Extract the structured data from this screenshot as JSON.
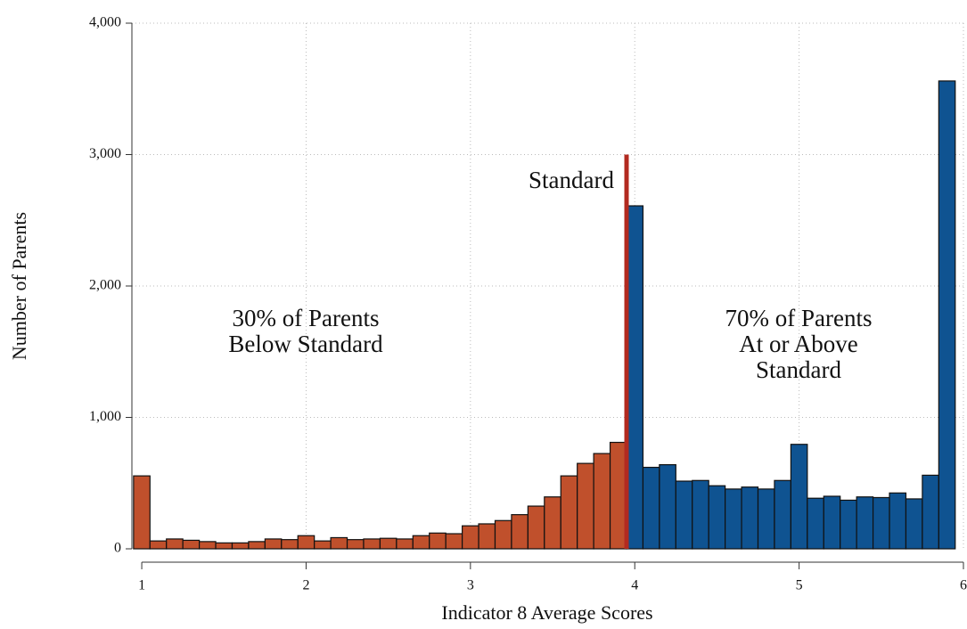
{
  "chart_data": {
    "type": "histogram",
    "x_label": "Indicator 8 Average Scores",
    "y_label": "Number of Parents",
    "bins": [
      0.95,
      1.05,
      1.15,
      1.25,
      1.35,
      1.45,
      1.55,
      1.65,
      1.75,
      1.85,
      1.95,
      2.05,
      2.15,
      2.25,
      2.35,
      2.45,
      2.55,
      2.65,
      2.75,
      2.85,
      2.95,
      3.05,
      3.15,
      3.25,
      3.35,
      3.45,
      3.55,
      3.65,
      3.75,
      3.85,
      3.95,
      4.05,
      4.15,
      4.25,
      4.35,
      4.45,
      4.55,
      4.65,
      4.75,
      4.85,
      4.95,
      5.05,
      5.15,
      5.25,
      5.35,
      5.45,
      5.55,
      5.65,
      5.75,
      5.85,
      5.95
    ],
    "values": [
      555,
      60,
      75,
      65,
      55,
      45,
      45,
      55,
      75,
      70,
      100,
      60,
      85,
      70,
      75,
      80,
      75,
      100,
      120,
      115,
      175,
      190,
      215,
      260,
      325,
      395,
      555,
      650,
      725,
      810,
      2610,
      620,
      640,
      515,
      520,
      480,
      455,
      470,
      455,
      520,
      795,
      385,
      400,
      370,
      395,
      390,
      425,
      380,
      560,
      3560
    ],
    "color_below": "#c0502c",
    "color_above": "#0f5391",
    "standard_line": {
      "label": "Standard",
      "x": 3.95,
      "ymax": 3000,
      "color": "#b22a20"
    },
    "annotations": [
      {
        "lines": [
          "30% of Parents",
          "Below Standard"
        ],
        "color": "#c0502c"
      },
      {
        "lines": [
          "70% of Parents",
          "At or Above",
          "Standard"
        ],
        "color": "#1a5a96"
      }
    ],
    "xlim": [
      0.94,
      6.0
    ],
    "ylim": [
      0,
      4000
    ],
    "xticks": [
      1,
      2,
      3,
      4,
      5,
      6
    ],
    "yticks": [
      0,
      {
        "value": 1000,
        "label": "1,000"
      },
      {
        "value": 2000,
        "label": "2,000"
      },
      {
        "value": 3000,
        "label": "3,000"
      },
      {
        "value": 4000,
        "label": "4,000"
      }
    ],
    "grid": true
  }
}
